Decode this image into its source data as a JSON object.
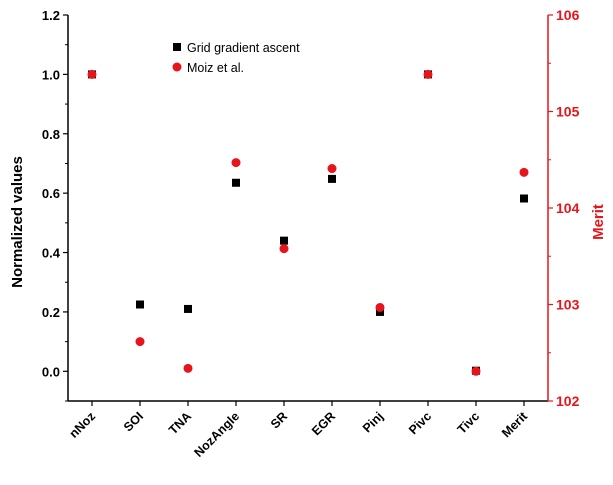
{
  "chart_data": {
    "type": "scatter",
    "categories": [
      "nNoz",
      "SOI",
      "TNA",
      "NozAngle",
      "SR",
      "EGR",
      "Pinj",
      "Pivc",
      "Tivc",
      "Merit"
    ],
    "ylabel": "Normalized values",
    "ylabel_right": "Merit",
    "ylim": [
      -0.1,
      1.2
    ],
    "ylim_right": [
      102.0,
      106.0
    ],
    "yticks": [
      "0.0",
      "0.2",
      "0.4",
      "0.6",
      "0.8",
      "1.0",
      "1.2"
    ],
    "yticks_right": [
      "102",
      "103",
      "104",
      "105",
      "106"
    ],
    "legend_position": "top-center",
    "series": [
      {
        "name": "Grid gradient ascent",
        "marker": "square",
        "color": "#000000",
        "values": [
          1.0,
          0.225,
          0.21,
          0.635,
          0.44,
          0.648,
          0.2,
          1.0,
          0.002,
          0.582
        ]
      },
      {
        "name": "Moiz et al.",
        "marker": "circle",
        "color": "#e8141b",
        "values": [
          1.0,
          0.1,
          0.01,
          0.703,
          0.413,
          0.683,
          0.215,
          1.0,
          0.0,
          0.67
        ]
      }
    ]
  }
}
